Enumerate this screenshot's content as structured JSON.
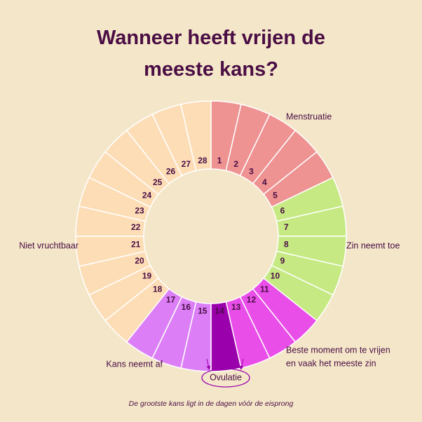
{
  "title": "Wanneer heeft vrijen de meeste kans?",
  "phases": [
    {
      "name": "Menstruatie",
      "color": "#ee9292",
      "days": [
        "1",
        "2",
        "3",
        "4",
        "5"
      ]
    },
    {
      "name": "Zin neemt toe",
      "color": "#c6e983",
      "days": [
        "6",
        "7",
        "8",
        "9",
        "10"
      ]
    },
    {
      "name": [
        "Beste moment om te vrijen",
        "en vaak het meeste zin"
      ],
      "color": "#e94ee9",
      "days": [
        "11",
        "12",
        "13"
      ]
    },
    {
      "name": "Ovulatie",
      "color": "#9a00ab",
      "days": [
        "14"
      ]
    },
    {
      "name": "Kans neemt af",
      "color": "#dc7ff6",
      "days": [
        "15",
        "16",
        "17"
      ]
    },
    {
      "name": "Niet vruchtbaar",
      "color": "#fdddb6",
      "days": [
        "18",
        "19",
        "20",
        "21",
        "22",
        "23",
        "24",
        "25",
        "26",
        "27",
        "28"
      ]
    }
  ],
  "footnote": "De grootste kans ligt in de dagen vóór de eisprong"
}
